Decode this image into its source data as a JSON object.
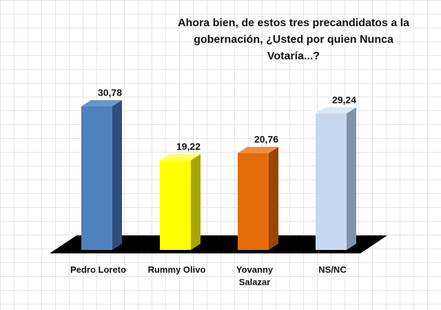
{
  "chart_data": {
    "type": "bar",
    "title_lines": [
      "Ahora bien, de estos tres precandidatos a la",
      "gobernación, ¿Usted por quien Nunca",
      "Votaría...?"
    ],
    "categories": [
      [
        "Pedro Loreto"
      ],
      [
        "Rummy Olivo"
      ],
      [
        "Yovanny",
        "Salazar"
      ],
      [
        "NS/NC"
      ]
    ],
    "values": [
      30.78,
      19.22,
      20.76,
      29.24
    ],
    "value_labels": [
      "30,78",
      "19,22",
      "20,76",
      "29,24"
    ],
    "colors": [
      "#4f81bd",
      "#ffff00",
      "#e46c0a",
      "#c6d9f1"
    ],
    "side_colors": [
      "#2e4f7a",
      "#a6a600",
      "#9a4500",
      "#8093a8"
    ],
    "top_colors": [
      "#6a95cc",
      "#ffff66",
      "#f08c3c",
      "#dbe7f7"
    ],
    "floor_color": "#000000",
    "ylim": [
      0,
      32
    ],
    "grid": true
  }
}
